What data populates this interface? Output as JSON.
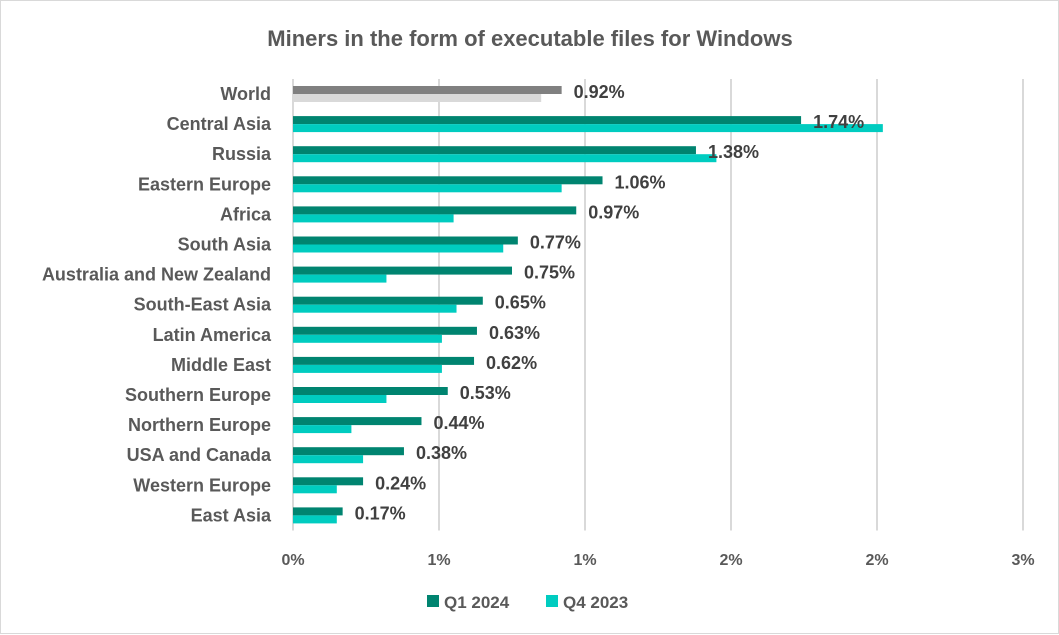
{
  "chart_data": {
    "type": "bar",
    "orientation": "horizontal",
    "title": "Miners in the form of executable files for Windows",
    "categories": [
      "World",
      "Central Asia",
      "Russia",
      "Eastern Europe",
      "Africa",
      "South Asia",
      "Australia and New Zealand",
      "South-East Asia",
      "Latin America",
      "Middle East",
      "Southern Europe",
      "Northern Europe",
      "USA and Canada",
      "Western Europe",
      "East Asia"
    ],
    "series": [
      {
        "name": "Q1 2024",
        "color": "#008470",
        "world_color": "#808080",
        "values": [
          0.92,
          1.74,
          1.38,
          1.06,
          0.97,
          0.77,
          0.75,
          0.65,
          0.63,
          0.62,
          0.53,
          0.44,
          0.38,
          0.24,
          0.17
        ]
      },
      {
        "name": "Q4 2023",
        "color": "#00CCC0",
        "world_color": "#D9D9D9",
        "values": [
          0.85,
          2.02,
          1.45,
          0.92,
          0.55,
          0.72,
          0.32,
          0.56,
          0.51,
          0.51,
          0.32,
          0.2,
          0.24,
          0.15,
          0.15
        ]
      }
    ],
    "data_labels": [
      "0.92%",
      "1.74%",
      "1.38%",
      "1.06%",
      "0.97%",
      "0.77%",
      "0.75%",
      "0.65%",
      "0.63%",
      "0.62%",
      "0.53%",
      "0.44%",
      "0.38%",
      "0.24%",
      "0.17%"
    ],
    "xlim": [
      0,
      2.5
    ],
    "xticks": [
      0,
      0.5,
      1,
      1.5,
      2,
      2.5
    ],
    "xtick_labels": [
      "0%",
      "1%",
      "1%",
      "2%",
      "2%",
      "3%"
    ],
    "grid": "vertical",
    "gridline_color": "#D9D9D9",
    "legend": "bottom"
  }
}
